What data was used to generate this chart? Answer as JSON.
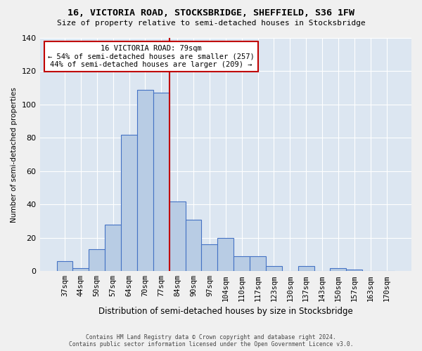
{
  "title": "16, VICTORIA ROAD, STOCKSBRIDGE, SHEFFIELD, S36 1FW",
  "subtitle": "Size of property relative to semi-detached houses in Stocksbridge",
  "xlabel": "Distribution of semi-detached houses by size in Stocksbridge",
  "ylabel": "Number of semi-detached properties",
  "footer1": "Contains HM Land Registry data © Crown copyright and database right 2024.",
  "footer2": "Contains public sector information licensed under the Open Government Licence v3.0.",
  "categories": [
    "37sqm",
    "44sqm",
    "50sqm",
    "57sqm",
    "64sqm",
    "70sqm",
    "77sqm",
    "84sqm",
    "90sqm",
    "97sqm",
    "104sqm",
    "110sqm",
    "117sqm",
    "123sqm",
    "130sqm",
    "137sqm",
    "143sqm",
    "150sqm",
    "157sqm",
    "163sqm",
    "170sqm"
  ],
  "values": [
    6,
    2,
    13,
    28,
    82,
    109,
    107,
    42,
    31,
    16,
    20,
    9,
    9,
    3,
    0,
    3,
    0,
    2,
    1,
    0,
    0
  ],
  "bar_color": "#b8cce4",
  "bar_edge_color": "#4472c4",
  "bg_color": "#dce6f1",
  "grid_color": "#ffffff",
  "vline_x_idx": 6,
  "vline_color": "#c00000",
  "annotation_line1": "16 VICTORIA ROAD: 79sqm",
  "annotation_line2": "← 54% of semi-detached houses are smaller (257)",
  "annotation_line3": "44% of semi-detached houses are larger (209) →",
  "annotation_box_color": "#ffffff",
  "annotation_box_edge": "#c00000",
  "ylim": [
    0,
    140
  ],
  "yticks": [
    0,
    20,
    40,
    60,
    80,
    100,
    120,
    140
  ],
  "fig_bg": "#f0f0f0"
}
